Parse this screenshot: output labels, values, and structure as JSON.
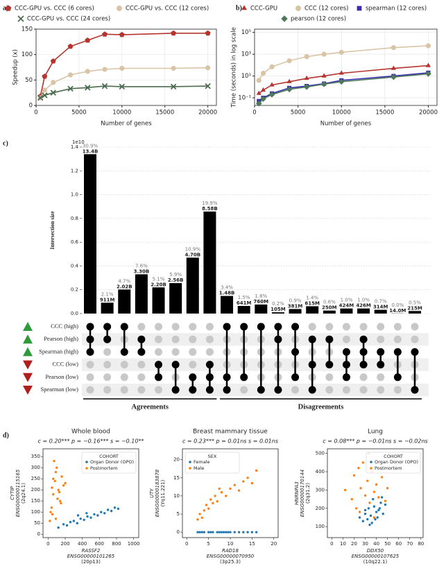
{
  "chart_data": [
    {
      "type": "line",
      "panel_label": "a)",
      "x": [
        500,
        1000,
        2000,
        4000,
        6000,
        8000,
        10000,
        16000,
        20000
      ],
      "xlim": [
        0,
        21000
      ],
      "xticks": [
        0,
        5000,
        10000,
        15000,
        20000
      ],
      "ylim": [
        0,
        150
      ],
      "yticks": [
        0,
        50,
        100,
        150
      ],
      "grid": true,
      "xlabel": "Number of genes",
      "ylabel": "Speedup (x)",
      "legend": "top",
      "series": [
        {
          "name": "CCC-GPU vs. CCC (6 cores)",
          "color": "#b5342d",
          "marker": "pentagon",
          "values": [
            18,
            57,
            87,
            116,
            128,
            140,
            139,
            142,
            142
          ]
        },
        {
          "name": "CCC-GPU vs. CCC (12 cores)",
          "color": "#d9c4a6",
          "marker": "circle",
          "values": [
            15,
            30,
            45,
            60,
            67,
            71,
            73,
            73,
            74
          ]
        },
        {
          "name": "CCC-GPU vs. CCC (24 cores)",
          "color": "#4a6b4e",
          "marker": "x",
          "values": [
            15,
            20,
            25,
            33,
            35,
            38,
            37,
            37,
            38
          ]
        }
      ]
    },
    {
      "type": "line",
      "panel_label": "b)",
      "x": [
        500,
        1000,
        2000,
        4000,
        6000,
        8000,
        10000,
        16000,
        20000
      ],
      "xlim": [
        0,
        21000
      ],
      "xticks": [
        0,
        5000,
        10000,
        15000,
        20000
      ],
      "ylog": true,
      "ylim": [
        0.02,
        200000
      ],
      "yticks": [
        {
          "value": 0.1,
          "label": "10⁻¹"
        },
        {
          "value": 10,
          "label": "10¹"
        },
        {
          "value": 1000,
          "label": "10³"
        },
        {
          "value": 100000,
          "label": "10⁵"
        }
      ],
      "grid": true,
      "xlabel": "Number of genes",
      "ylabel": "Time (seconds) in log scale",
      "legend": "top",
      "series": [
        {
          "name": "CCC-GPU",
          "color": "#b5342d",
          "marker": "triangle",
          "values": [
            0.25,
            0.5,
            1.5,
            3,
            6,
            10,
            18,
            50,
            90
          ]
        },
        {
          "name": "CCC (12 cores)",
          "color": "#d9c4a6",
          "marker": "circle",
          "values": [
            4,
            18,
            70,
            250,
            600,
            1000,
            1500,
            4000,
            6000
          ]
        },
        {
          "name": "spearman (12 cores)",
          "color": "#3a2db0",
          "marker": "square",
          "values": [
            0.05,
            0.1,
            0.25,
            0.8,
            1.2,
            2,
            4,
            10,
            20
          ]
        },
        {
          "name": "pearson (12 cores)",
          "color": "#4f7a5a",
          "marker": "diamond",
          "values": [
            0.03,
            0.08,
            0.2,
            0.6,
            1,
            1.8,
            3,
            8,
            16
          ]
        }
      ]
    },
    {
      "type": "upset",
      "panel_label": "c)",
      "ylabel": "Intersection size",
      "offset_label": "1e10",
      "ylim": [
        0,
        1.4
      ],
      "yticks": [
        {
          "value": 0,
          "label": "0.0"
        },
        0.2,
        0.4,
        0.6,
        0.8,
        {
          "value": 1,
          "label": "1.0"
        },
        1.2,
        1.4
      ],
      "grid": true,
      "rows": [
        {
          "name": "CCC (high)",
          "color": "#2e9a3a",
          "marker": "up"
        },
        {
          "name": "Pearson (high)",
          "color": "#2e9a3a",
          "marker": "up"
        },
        {
          "name": "Spearman (high)",
          "color": "#2e9a3a",
          "marker": "up"
        },
        {
          "name": "CCC (low)",
          "color": "#b01e1e",
          "marker": "down"
        },
        {
          "name": "Pearson (low)",
          "color": "#b01e1e",
          "marker": "down"
        },
        {
          "name": "Spearman (low)",
          "color": "#b01e1e",
          "marker": "down"
        }
      ],
      "groups": [
        {
          "name": "Agreements",
          "values": [
            1.34,
            0.0911,
            0.202,
            0.33,
            0.22,
            0.256,
            0.47,
            0.858
          ],
          "value_labels": [
            "13.4B",
            "911M",
            "2.02B",
            "3.30B",
            "2.20B",
            "2.56B",
            "4.70B",
            "8.58B"
          ],
          "percent_labels": [
            "30.9%",
            "2.1%",
            "4.7%",
            "7.6%",
            "5.1%",
            "5.9%",
            "10.9%",
            "19.9%"
          ],
          "sets": [
            [
              0,
              1,
              2
            ],
            [
              0,
              1
            ],
            [
              0,
              2
            ],
            [
              1,
              2
            ],
            [
              3,
              4
            ],
            [
              3,
              5
            ],
            [
              4,
              5
            ],
            [
              3,
              4,
              5
            ]
          ]
        },
        {
          "name": "Disagreements",
          "values": [
            0.148,
            0.0641,
            0.076,
            0.0105,
            0.0381,
            0.0615,
            0.025,
            0.0424,
            0.0426,
            0.0314,
            0.0014,
            0.0215
          ],
          "value_labels": [
            "1.48B",
            "641M",
            "760M",
            "105M",
            "381M",
            "615M",
            "250M",
            "424M",
            "426M",
            "314M",
            "14.0M",
            "215M"
          ],
          "percent_labels": [
            "3.4%",
            "1.5%",
            "1.8%",
            "0.2%",
            "0.9%",
            "1.4%",
            "0.6%",
            "1.0%",
            "1.0%",
            "0.7%",
            "0.0%",
            "0.5%"
          ],
          "sets": [
            [
              0,
              4,
              5
            ],
            [
              0,
              4
            ],
            [
              0,
              5
            ],
            [
              0,
              1,
              5
            ],
            [
              0,
              2,
              4
            ],
            [
              1,
              3,
              5
            ],
            [
              1,
              3
            ],
            [
              2,
              3,
              4
            ],
            [
              1,
              2,
              3
            ],
            [
              2,
              3
            ],
            [
              2,
              4
            ],
            [
              2,
              5
            ]
          ]
        }
      ]
    },
    {
      "type": "scatter",
      "panel_label": "d)",
      "title": "Whole blood",
      "stats": "c = 0.20***  p = −0.16***  s = −0.10**",
      "xlabel": [
        "RASSF2",
        "ENSG00000101265",
        "(20p13)"
      ],
      "ylabel": [
        "CYTIP",
        "ENSG00000115165",
        "(2q24.1)"
      ],
      "xlim": [
        -60,
        1060
      ],
      "xticks": [
        0,
        200,
        400,
        600,
        800,
        1000
      ],
      "ylim": [
        -15,
        385
      ],
      "yticks": [
        0,
        50,
        100,
        150,
        200,
        250,
        300,
        350
      ],
      "legend": "upper right",
      "legend_title": "COHORT",
      "series": [
        {
          "name": "Organ Donor (OPO)",
          "color": "#1f77b4",
          "x": [
            120,
            180,
            220,
            260,
            300,
            340,
            380,
            420,
            460,
            500,
            540,
            580,
            620,
            660,
            700,
            740,
            780,
            820,
            350,
            450
          ],
          "values": [
            30,
            45,
            40,
            55,
            60,
            50,
            70,
            65,
            80,
            75,
            90,
            85,
            100,
            95,
            110,
            105,
            120,
            115,
            85,
            95
          ]
        },
        {
          "name": "Postmortem",
          "color": "#ff7f0e",
          "x": [
            20,
            40,
            60,
            80,
            100,
            120,
            140,
            160,
            180,
            50,
            70,
            90,
            110,
            30,
            130,
            150,
            60,
            90,
            200,
            45
          ],
          "values": [
            60,
            120,
            180,
            240,
            300,
            200,
            150,
            260,
            220,
            90,
            330,
            280,
            160,
            100,
            190,
            140,
            250,
            70,
            230,
            210
          ]
        }
      ]
    },
    {
      "type": "scatter",
      "title": "Breast mammary tissue",
      "stats": "c = 0.23***  p = 0.01ns  s = 0.01ns",
      "xlabel": [
        "RAD18",
        "ENSG00000070950",
        "(3p25.3)"
      ],
      "ylabel": [
        "UTY",
        "ENSG00000183878",
        "(Yq11.221)"
      ],
      "xlim": [
        -1,
        21
      ],
      "xticks": [
        0,
        5,
        10,
        15,
        20
      ],
      "ylim": [
        -1.5,
        23
      ],
      "yticks": [
        0,
        5,
        10,
        15,
        20
      ],
      "legend": "upper left",
      "legend_title": "SEX",
      "series": [
        {
          "name": "Female",
          "color": "#1f77b4",
          "x": [
            2.5,
            3,
            3.5,
            4,
            5,
            5.5,
            6,
            7,
            7.5,
            8,
            9,
            9.5,
            10,
            11,
            12,
            13,
            14,
            15,
            16,
            8.5
          ],
          "values": [
            0,
            0,
            0,
            0,
            0,
            0,
            0,
            0,
            0,
            0,
            0,
            0,
            0,
            0,
            0,
            0,
            0,
            0,
            0,
            0
          ]
        },
        {
          "name": "Male",
          "color": "#ff7f0e",
          "x": [
            2.5,
            3,
            3.5,
            4,
            4.5,
            5,
            5.5,
            6,
            6.5,
            7,
            8,
            9,
            10,
            11,
            12,
            13,
            14,
            15,
            16,
            7.5
          ],
          "values": [
            3.5,
            5,
            4,
            6,
            7.5,
            6.5,
            9,
            8,
            10,
            8.5,
            11,
            10,
            12,
            13,
            11.5,
            14,
            15,
            13.5,
            17,
            12
          ]
        }
      ]
    },
    {
      "type": "scatter",
      "title": "Lung",
      "stats": "c = 0.08***  p = −0.01ns  s = −0.02ns",
      "xlabel": [
        "DDX50",
        "ENSG00000107625",
        "(10q22.1)"
      ],
      "ylabel": [
        "HNRNPA3",
        "ENSG00000170144",
        "(2q31.2)"
      ],
      "xlim": [
        -4,
        82
      ],
      "xticks": [
        0,
        10,
        20,
        30,
        40,
        50,
        60,
        70,
        80
      ],
      "ylim": [
        40,
        525
      ],
      "yticks": [
        100,
        200,
        300,
        400,
        500
      ],
      "legend": "upper right",
      "legend_title": "COHORT",
      "series": [
        {
          "name": "Organ Donor (OPO)",
          "color": "#1f77b4",
          "x": [
            25,
            28,
            30,
            32,
            33,
            35,
            36,
            38,
            40,
            42,
            44,
            46,
            48,
            34,
            37,
            41,
            30,
            39,
            43,
            45
          ],
          "values": [
            150,
            130,
            170,
            140,
            200,
            160,
            120,
            210,
            180,
            190,
            230,
            170,
            220,
            110,
            250,
            150,
            190,
            140,
            200,
            260
          ]
        },
        {
          "name": "Postmortem",
          "color": "#ff7f0e",
          "x": [
            12,
            18,
            20,
            22,
            24,
            26,
            28,
            30,
            32,
            34,
            36,
            38,
            40,
            42,
            45,
            48,
            50,
            25,
            33,
            38
          ],
          "values": [
            300,
            250,
            380,
            200,
            420,
            310,
            450,
            270,
            350,
            230,
            400,
            290,
            330,
            260,
            370,
            240,
            310,
            180,
            500,
            150
          ]
        }
      ]
    }
  ]
}
